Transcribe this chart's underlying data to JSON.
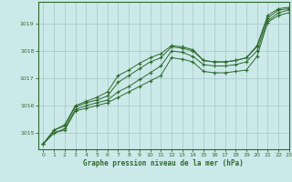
{
  "title": "",
  "xlabel": "Graphe pression niveau de la mer (hPa)",
  "ylabel": "",
  "bg_color": "#cce9e9",
  "grid_color": "#aacccc",
  "line_color": "#2d6a2d",
  "xlim": [
    -0.5,
    23
  ],
  "ylim": [
    1014.4,
    1019.8
  ],
  "yticks": [
    1015,
    1016,
    1017,
    1018,
    1019
  ],
  "xticks": [
    0,
    1,
    2,
    3,
    4,
    5,
    6,
    7,
    8,
    9,
    10,
    11,
    12,
    13,
    14,
    15,
    16,
    17,
    18,
    19,
    20,
    21,
    22,
    23
  ],
  "series": [
    [
      1014.6,
      1015.0,
      1015.1,
      1015.8,
      1015.9,
      1016.0,
      1016.1,
      1016.3,
      1016.5,
      1016.7,
      1016.9,
      1017.1,
      1017.75,
      1017.7,
      1017.6,
      1017.25,
      1017.2,
      1017.2,
      1017.25,
      1017.3,
      1017.8,
      1019.05,
      1019.3,
      1019.4
    ],
    [
      1014.6,
      1015.0,
      1015.15,
      1015.85,
      1016.0,
      1016.1,
      1016.2,
      1016.5,
      1016.7,
      1016.95,
      1017.2,
      1017.45,
      1018.0,
      1017.95,
      1017.8,
      1017.5,
      1017.45,
      1017.45,
      1017.5,
      1017.6,
      1018.0,
      1019.1,
      1019.4,
      1019.5
    ],
    [
      1014.6,
      1015.1,
      1015.25,
      1015.95,
      1016.1,
      1016.2,
      1016.35,
      1016.85,
      1017.1,
      1017.35,
      1017.6,
      1017.75,
      1018.15,
      1018.1,
      1018.0,
      1017.65,
      1017.6,
      1017.6,
      1017.65,
      1017.75,
      1018.15,
      1019.2,
      1019.5,
      1019.55
    ],
    [
      1014.6,
      1015.1,
      1015.3,
      1016.0,
      1016.15,
      1016.3,
      1016.5,
      1017.1,
      1017.3,
      1017.55,
      1017.75,
      1017.9,
      1018.2,
      1018.15,
      1018.05,
      1017.65,
      1017.6,
      1017.6,
      1017.65,
      1017.75,
      1018.2,
      1019.3,
      1019.55,
      1019.6
    ]
  ]
}
